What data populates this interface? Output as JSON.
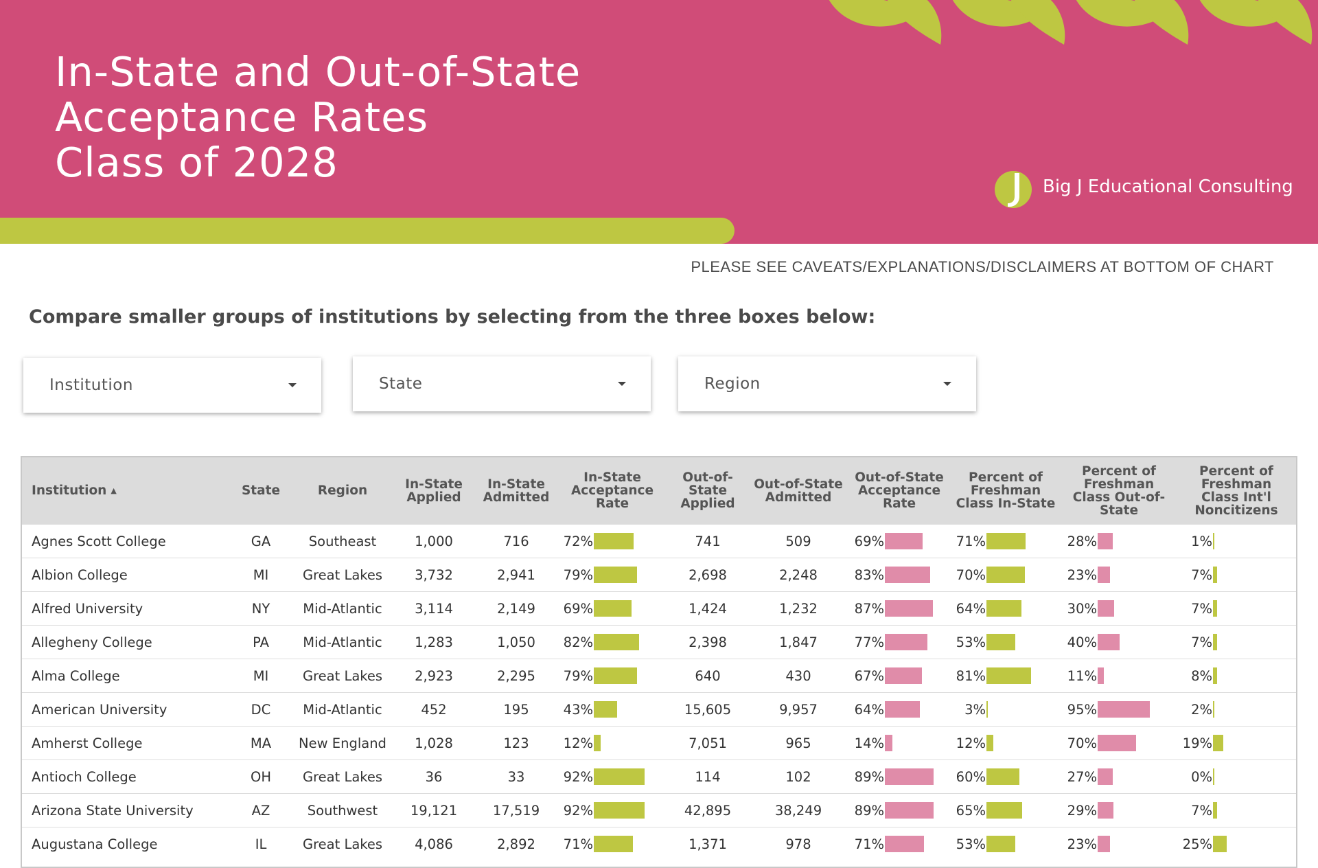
{
  "header": {
    "title_lines": [
      "In-State and Out-of-State",
      "Acceptance Rates",
      "Class of 2028"
    ],
    "logo_text": "Big J Educational Consulting",
    "caveat_text": "PLEASE SEE CAVEATS/EXPLANATIONS/DISCLAIMERS AT BOTTOM OF CHART"
  },
  "subtitle": "Compare smaller groups of institutions by selecting from the three boxes below:",
  "filters": [
    {
      "label": "Institution"
    },
    {
      "label": "State"
    },
    {
      "label": "Region"
    }
  ],
  "colors": {
    "banner": "#d04c78",
    "accent_green": "#bec742",
    "bar_pink": "#e08ca9",
    "header_gray": "#dcdcdc"
  },
  "table": {
    "columns": [
      "Institution",
      "State",
      "Region",
      "In-State Applied",
      "In-State Admitted",
      "In-State Acceptance Rate",
      "Out-of-State Applied",
      "Out-of-State Admitted",
      "Out-of-State Acceptance Rate",
      "Percent of Freshman Class In-State",
      "Percent of Freshman Class Out-of-State",
      "Percent of Freshman Class Int'l Noncitizens"
    ],
    "sort_column": "Institution",
    "sort_direction": "ascending",
    "rows": [
      {
        "institution": "Agnes Scott College",
        "state": "GA",
        "region": "Southeast",
        "in_applied": "1,000",
        "in_admitted": "716",
        "in_rate": "72%",
        "out_applied": "741",
        "out_admitted": "509",
        "out_rate": "69%",
        "pct_in": "71%",
        "pct_out": "28%",
        "pct_intl": "1%"
      },
      {
        "institution": "Albion College",
        "state": "MI",
        "region": "Great Lakes",
        "in_applied": "3,732",
        "in_admitted": "2,941",
        "in_rate": "79%",
        "out_applied": "2,698",
        "out_admitted": "2,248",
        "out_rate": "83%",
        "pct_in": "70%",
        "pct_out": "23%",
        "pct_intl": "7%"
      },
      {
        "institution": "Alfred University",
        "state": "NY",
        "region": "Mid-Atlantic",
        "in_applied": "3,114",
        "in_admitted": "2,149",
        "in_rate": "69%",
        "out_applied": "1,424",
        "out_admitted": "1,232",
        "out_rate": "87%",
        "pct_in": "64%",
        "pct_out": "30%",
        "pct_intl": "7%"
      },
      {
        "institution": "Allegheny College",
        "state": "PA",
        "region": "Mid-Atlantic",
        "in_applied": "1,283",
        "in_admitted": "1,050",
        "in_rate": "82%",
        "out_applied": "2,398",
        "out_admitted": "1,847",
        "out_rate": "77%",
        "pct_in": "53%",
        "pct_out": "40%",
        "pct_intl": "7%"
      },
      {
        "institution": "Alma College",
        "state": "MI",
        "region": "Great Lakes",
        "in_applied": "2,923",
        "in_admitted": "2,295",
        "in_rate": "79%",
        "out_applied": "640",
        "out_admitted": "430",
        "out_rate": "67%",
        "pct_in": "81%",
        "pct_out": "11%",
        "pct_intl": "8%"
      },
      {
        "institution": "American University",
        "state": "DC",
        "region": "Mid-Atlantic",
        "in_applied": "452",
        "in_admitted": "195",
        "in_rate": "43%",
        "out_applied": "15,605",
        "out_admitted": "9,957",
        "out_rate": "64%",
        "pct_in": "3%",
        "pct_out": "95%",
        "pct_intl": "2%"
      },
      {
        "institution": "Amherst College",
        "state": "MA",
        "region": "New England",
        "in_applied": "1,028",
        "in_admitted": "123",
        "in_rate": "12%",
        "out_applied": "7,051",
        "out_admitted": "965",
        "out_rate": "14%",
        "pct_in": "12%",
        "pct_out": "70%",
        "pct_intl": "19%"
      },
      {
        "institution": "Antioch College",
        "state": "OH",
        "region": "Great Lakes",
        "in_applied": "36",
        "in_admitted": "33",
        "in_rate": "92%",
        "out_applied": "114",
        "out_admitted": "102",
        "out_rate": "89%",
        "pct_in": "60%",
        "pct_out": "27%",
        "pct_intl": "0%"
      },
      {
        "institution": "Arizona State University",
        "state": "AZ",
        "region": "Southwest",
        "in_applied": "19,121",
        "in_admitted": "17,519",
        "in_rate": "92%",
        "out_applied": "42,895",
        "out_admitted": "38,249",
        "out_rate": "89%",
        "pct_in": "65%",
        "pct_out": "29%",
        "pct_intl": "7%"
      },
      {
        "institution": "Augustana College",
        "state": "IL",
        "region": "Great Lakes",
        "in_applied": "4,086",
        "in_admitted": "2,892",
        "in_rate": "71%",
        "out_applied": "1,371",
        "out_admitted": "978",
        "out_rate": "71%",
        "pct_in": "53%",
        "pct_out": "23%",
        "pct_intl": "25%"
      }
    ]
  }
}
